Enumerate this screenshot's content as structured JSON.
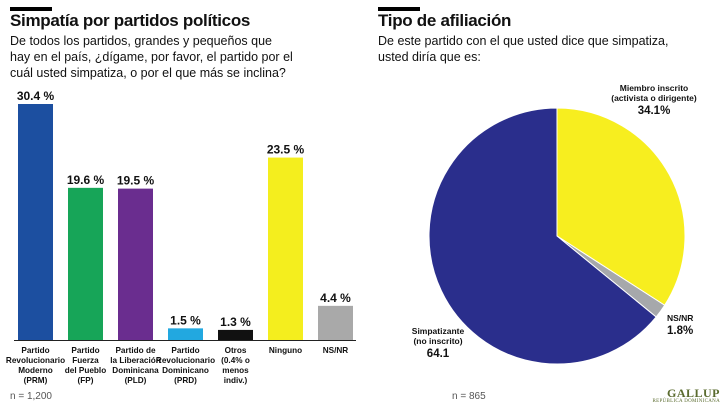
{
  "left_panel": {
    "title": "Simpatía por partidos políticos",
    "question": "De todos los partidos, grandes y pequeños que\nhay en el país, ¿dígame, por favor, el partido por el\ncuál usted simpatiza, o por el que más se inclina?",
    "footnote": "n = 1,200"
  },
  "right_panel": {
    "title": "Tipo de afiliación",
    "question": "De este partido con el que usted dice que simpatiza,\nusted diría que es:",
    "footnote": "n = 865"
  },
  "logo": {
    "name": "GALLUP",
    "tagline": "REPÚBLICA DOMINICANA"
  },
  "chart_data": [
    {
      "type": "bar",
      "title": "Simpatía por partidos políticos",
      "categories": [
        [
          "Partido",
          "Revolucionario",
          "Moderno",
          "(PRM)"
        ],
        [
          "Partido",
          "Fuerza",
          "del Pueblo",
          "(FP)"
        ],
        [
          "Partido de",
          "la Liberación",
          "Dominicana",
          "(PLD)"
        ],
        [
          "Partido",
          "Revolucionario",
          "Dominicano",
          "(PRD)"
        ],
        [
          "Otros",
          "(0.4% o",
          "menos",
          "indiv.)"
        ],
        [
          "Ninguno"
        ],
        [
          "NS/NR"
        ]
      ],
      "values": [
        30.4,
        19.6,
        19.5,
        1.5,
        1.3,
        23.5,
        4.4
      ],
      "value_labels": [
        "30.4 %",
        "19.6 %",
        "19.5 %",
        "1.5 %",
        "1.3 %",
        "23.5 %",
        "4.4 %"
      ],
      "colors": [
        "#1c4fa0",
        "#17a558",
        "#6a2d8f",
        "#22a8e0",
        "#111111",
        "#f4ee1e",
        "#a9a9a9"
      ],
      "ylim": [
        0,
        30.4
      ]
    },
    {
      "type": "pie",
      "title": "Tipo de afiliación",
      "slices": [
        {
          "label": [
            "Miembro inscrito",
            "(activista o dirigente)"
          ],
          "value": 34.1,
          "value_label": "34.1%",
          "color": "#f7ee1f"
        },
        {
          "label": [
            "NS/NR"
          ],
          "value": 1.8,
          "value_label": "1.8%",
          "color": "#a6a8ab"
        },
        {
          "label": [
            "Simpatizante",
            "(no inscrito)"
          ],
          "value": 64.1,
          "value_label": "64.1",
          "color": "#2a2e8c"
        }
      ],
      "start": "12 o'clock",
      "direction": "clockwise"
    }
  ]
}
